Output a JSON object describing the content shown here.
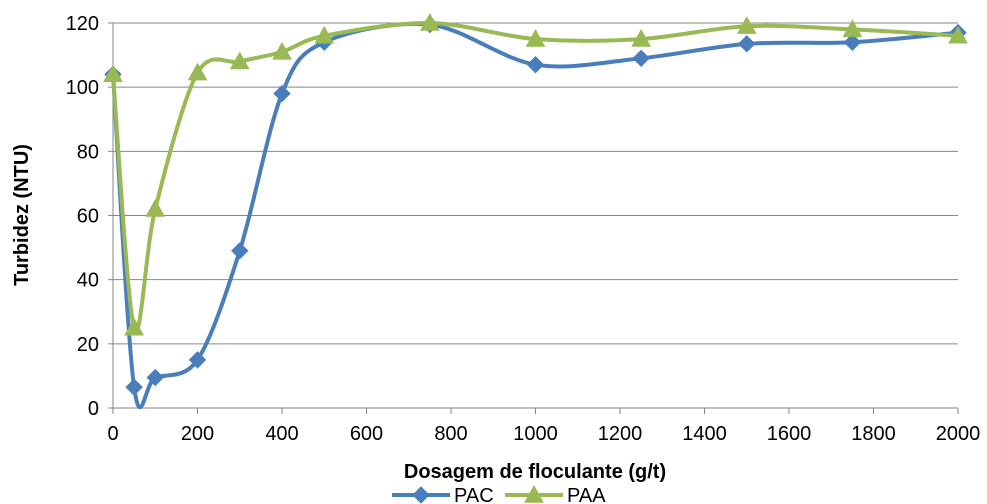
{
  "chart_data": {
    "type": "line",
    "title": "",
    "xlabel": "Dosagem de floculante (g/t)",
    "ylabel": "Turbidez (NTU)",
    "xlim": [
      0,
      2000
    ],
    "ylim": [
      0,
      120
    ],
    "x_ticks": [
      0,
      200,
      400,
      600,
      800,
      1000,
      1200,
      1400,
      1600,
      1800,
      2000
    ],
    "y_ticks": [
      0,
      20,
      40,
      60,
      80,
      100,
      120
    ],
    "grid": "horizontal",
    "legend_position": "bottom",
    "smooth": true,
    "series": [
      {
        "name": "PAC",
        "color": "#4a7ebb",
        "marker": "diamond",
        "x": [
          0,
          50,
          100,
          200,
          300,
          400,
          500,
          750,
          1000,
          1250,
          1500,
          1750,
          2000
        ],
        "y": [
          104,
          6.5,
          9.5,
          15,
          49,
          98,
          114,
          119.5,
          107,
          109,
          113.5,
          114,
          117
        ]
      },
      {
        "name": "PAA",
        "color": "#98b954",
        "marker": "triangle",
        "x": [
          0,
          50,
          100,
          200,
          300,
          400,
          500,
          750,
          1000,
          1250,
          1500,
          1750,
          2000
        ],
        "y": [
          104,
          25,
          62,
          104.5,
          108,
          111,
          116,
          120,
          115,
          115,
          119,
          118,
          116
        ]
      }
    ]
  }
}
